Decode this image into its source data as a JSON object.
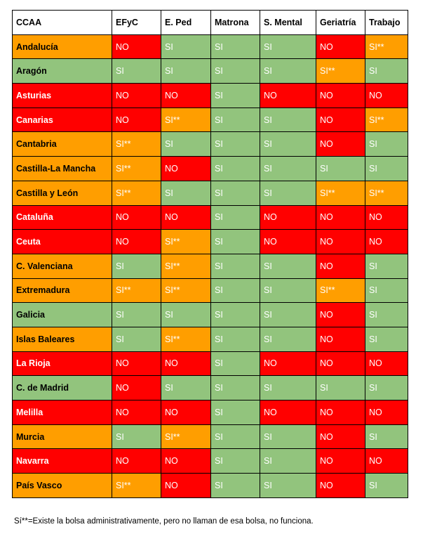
{
  "colors": {
    "red": "#ff0000",
    "orange": "#ff9e00",
    "green": "#92c47d"
  },
  "table": {
    "headers": [
      "CCAA",
      "EFyC",
      "E. Ped",
      "Matrona",
      "S. Mental",
      "Geriatría",
      "Trabajo"
    ],
    "rows": [
      {
        "region": "Andalucía",
        "region_color": "orange",
        "cells": [
          {
            "v": "NO",
            "c": "red"
          },
          {
            "v": "SI",
            "c": "green"
          },
          {
            "v": "SI",
            "c": "green"
          },
          {
            "v": "SI",
            "c": "green"
          },
          {
            "v": "NO",
            "c": "red"
          },
          {
            "v": "SI**",
            "c": "orange"
          }
        ]
      },
      {
        "region": "Aragón",
        "region_color": "green",
        "cells": [
          {
            "v": "SI",
            "c": "green"
          },
          {
            "v": "SI",
            "c": "green"
          },
          {
            "v": "SI",
            "c": "green"
          },
          {
            "v": "SI",
            "c": "green"
          },
          {
            "v": "SI**",
            "c": "orange"
          },
          {
            "v": "SI",
            "c": "green"
          }
        ]
      },
      {
        "region": "Asturias",
        "region_color": "red",
        "cells": [
          {
            "v": "NO",
            "c": "red"
          },
          {
            "v": "NO",
            "c": "red"
          },
          {
            "v": "SI",
            "c": "green"
          },
          {
            "v": "NO",
            "c": "red"
          },
          {
            "v": "NO",
            "c": "red"
          },
          {
            "v": "NO",
            "c": "red"
          }
        ]
      },
      {
        "region": "Canarias",
        "region_color": "red",
        "cells": [
          {
            "v": "NO",
            "c": "red"
          },
          {
            "v": "SI**",
            "c": "orange"
          },
          {
            "v": "SI",
            "c": "green"
          },
          {
            "v": "SI",
            "c": "green"
          },
          {
            "v": "NO",
            "c": "red"
          },
          {
            "v": "SI**",
            "c": "orange"
          }
        ]
      },
      {
        "region": "Cantabria",
        "region_color": "orange",
        "cells": [
          {
            "v": "SI**",
            "c": "orange"
          },
          {
            "v": "SI",
            "c": "green"
          },
          {
            "v": "SI",
            "c": "green"
          },
          {
            "v": "SI",
            "c": "green"
          },
          {
            "v": "NO",
            "c": "red"
          },
          {
            "v": "SI",
            "c": "green"
          }
        ]
      },
      {
        "region": "Castilla-La Mancha",
        "region_color": "orange",
        "cells": [
          {
            "v": "SI**",
            "c": "orange"
          },
          {
            "v": "NO",
            "c": "red"
          },
          {
            "v": "SI",
            "c": "green"
          },
          {
            "v": "SI",
            "c": "green"
          },
          {
            "v": "SI",
            "c": "green"
          },
          {
            "v": "SI",
            "c": "green"
          }
        ]
      },
      {
        "region": "Castilla y León",
        "region_color": "orange",
        "cells": [
          {
            "v": "SI**",
            "c": "orange"
          },
          {
            "v": "SI",
            "c": "green"
          },
          {
            "v": "SI",
            "c": "green"
          },
          {
            "v": "SI",
            "c": "green"
          },
          {
            "v": "SI**",
            "c": "orange"
          },
          {
            "v": "SI**",
            "c": "orange"
          }
        ]
      },
      {
        "region": "Cataluña",
        "region_color": "red",
        "cells": [
          {
            "v": "NO",
            "c": "red"
          },
          {
            "v": "NO",
            "c": "red"
          },
          {
            "v": "SI",
            "c": "green"
          },
          {
            "v": "NO",
            "c": "red"
          },
          {
            "v": "NO",
            "c": "red"
          },
          {
            "v": "NO",
            "c": "red"
          }
        ]
      },
      {
        "region": "Ceuta",
        "region_color": "red",
        "cells": [
          {
            "v": "NO",
            "c": "red"
          },
          {
            "v": "SI**",
            "c": "orange"
          },
          {
            "v": "SI",
            "c": "green"
          },
          {
            "v": "NO",
            "c": "red"
          },
          {
            "v": "NO",
            "c": "red"
          },
          {
            "v": "NO",
            "c": "red"
          }
        ]
      },
      {
        "region": "C. Valenciana",
        "region_color": "orange",
        "cells": [
          {
            "v": "SI",
            "c": "green"
          },
          {
            "v": "SI**",
            "c": "orange"
          },
          {
            "v": "SI",
            "c": "green"
          },
          {
            "v": "SI",
            "c": "green"
          },
          {
            "v": "NO",
            "c": "red"
          },
          {
            "v": "SI",
            "c": "green"
          }
        ]
      },
      {
        "region": "Extremadura",
        "region_color": "orange",
        "cells": [
          {
            "v": "SI**",
            "c": "orange"
          },
          {
            "v": "SI**",
            "c": "orange"
          },
          {
            "v": "SI",
            "c": "green"
          },
          {
            "v": "SI",
            "c": "green"
          },
          {
            "v": "SI**",
            "c": "orange"
          },
          {
            "v": "SI",
            "c": "green"
          }
        ]
      },
      {
        "region": "Galicia",
        "region_color": "green",
        "cells": [
          {
            "v": "SI",
            "c": "green"
          },
          {
            "v": "SI",
            "c": "green"
          },
          {
            "v": "SI",
            "c": "green"
          },
          {
            "v": "SI",
            "c": "green"
          },
          {
            "v": "NO",
            "c": "red"
          },
          {
            "v": "SI",
            "c": "green"
          }
        ]
      },
      {
        "region": "Islas Baleares",
        "region_color": "orange",
        "cells": [
          {
            "v": "SI",
            "c": "green"
          },
          {
            "v": "SI**",
            "c": "orange"
          },
          {
            "v": "SI",
            "c": "green"
          },
          {
            "v": "SI",
            "c": "green"
          },
          {
            "v": "NO",
            "c": "red"
          },
          {
            "v": "SI",
            "c": "green"
          }
        ]
      },
      {
        "region": "La Rioja",
        "region_color": "red",
        "cells": [
          {
            "v": "NO",
            "c": "red"
          },
          {
            "v": "NO",
            "c": "red"
          },
          {
            "v": "SI",
            "c": "green"
          },
          {
            "v": "NO",
            "c": "red"
          },
          {
            "v": "NO",
            "c": "red"
          },
          {
            "v": "NO",
            "c": "red"
          }
        ]
      },
      {
        "region": "C. de Madrid",
        "region_color": "green",
        "cells": [
          {
            "v": "NO",
            "c": "red"
          },
          {
            "v": "SI",
            "c": "green"
          },
          {
            "v": "SI",
            "c": "green"
          },
          {
            "v": "SI",
            "c": "green"
          },
          {
            "v": "SI",
            "c": "green"
          },
          {
            "v": "SI",
            "c": "green"
          }
        ]
      },
      {
        "region": "Melilla",
        "region_color": "red",
        "cells": [
          {
            "v": "NO",
            "c": "red"
          },
          {
            "v": "NO",
            "c": "red"
          },
          {
            "v": "SI",
            "c": "green"
          },
          {
            "v": "NO",
            "c": "red"
          },
          {
            "v": "NO",
            "c": "red"
          },
          {
            "v": "NO",
            "c": "red"
          }
        ]
      },
      {
        "region": "Murcia",
        "region_color": "orange",
        "cells": [
          {
            "v": "SI",
            "c": "green"
          },
          {
            "v": "SI**",
            "c": "orange"
          },
          {
            "v": "SI",
            "c": "green"
          },
          {
            "v": "SI",
            "c": "green"
          },
          {
            "v": "NO",
            "c": "red"
          },
          {
            "v": "SI",
            "c": "green"
          }
        ]
      },
      {
        "region": "Navarra",
        "region_color": "red",
        "cells": [
          {
            "v": "NO",
            "c": "red"
          },
          {
            "v": "NO",
            "c": "red"
          },
          {
            "v": "SI",
            "c": "green"
          },
          {
            "v": "SI",
            "c": "green"
          },
          {
            "v": "NO",
            "c": "red"
          },
          {
            "v": "NO",
            "c": "red"
          }
        ]
      },
      {
        "region": "País Vasco",
        "region_color": "orange",
        "cells": [
          {
            "v": "SI**",
            "c": "orange"
          },
          {
            "v": "NO",
            "c": "red"
          },
          {
            "v": "SI",
            "c": "green"
          },
          {
            "v": "SI",
            "c": "green"
          },
          {
            "v": "NO",
            "c": "red"
          },
          {
            "v": "SI",
            "c": "green"
          }
        ]
      }
    ]
  },
  "footnote": "Sí**=Existe la bolsa administrativamente, pero no llaman de esa bolsa, no funciona."
}
